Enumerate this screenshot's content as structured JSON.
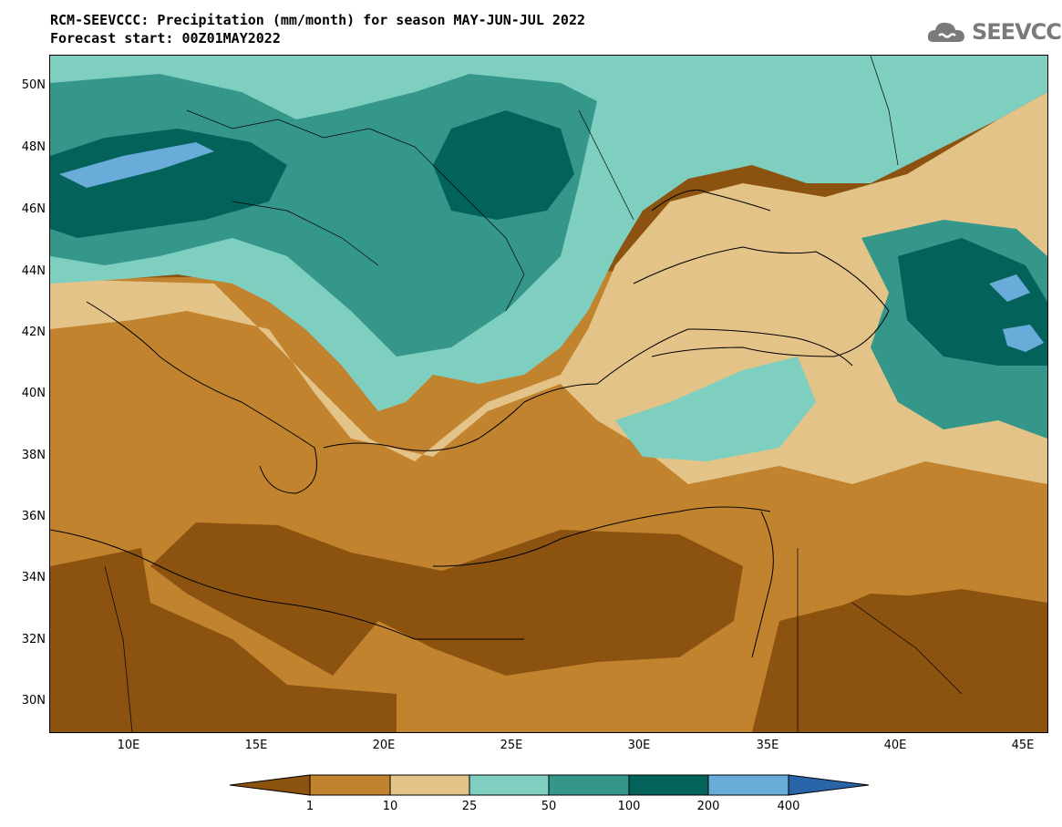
{
  "header": {
    "title_line1": "RCM-SEEVCCC: Precipitation (mm/month) for season MAY-JUN-JUL 2022",
    "title_line2": "Forecast start: 00Z01MAY2022",
    "logo_text": "SEEVCCC"
  },
  "axes": {
    "lat_labels": [
      "50N",
      "48N",
      "46N",
      "44N",
      "42N",
      "40N",
      "38N",
      "36N",
      "34N",
      "32N",
      "30N"
    ],
    "lon_labels": [
      "10E",
      "15E",
      "20E",
      "25E",
      "30E",
      "35E",
      "40E",
      "45E"
    ]
  },
  "colorbar": {
    "levels": [
      "1",
      "10",
      "25",
      "50",
      "100",
      "200",
      "400"
    ],
    "colors": [
      "#8b5210",
      "#c2832f",
      "#e3c387",
      "#7fcfc0",
      "#35968a",
      "#03635a",
      "#6aacd9",
      "#2a64a8"
    ]
  },
  "colors": {
    "dry_dark": "#8b5210",
    "dry_mid": "#c2832f",
    "dry_light": "#e3c387",
    "wet_light": "#7fcfc0",
    "wet_mid": "#35968a",
    "wet_dark": "#03635a",
    "wet_max": "#6aacd9"
  }
}
